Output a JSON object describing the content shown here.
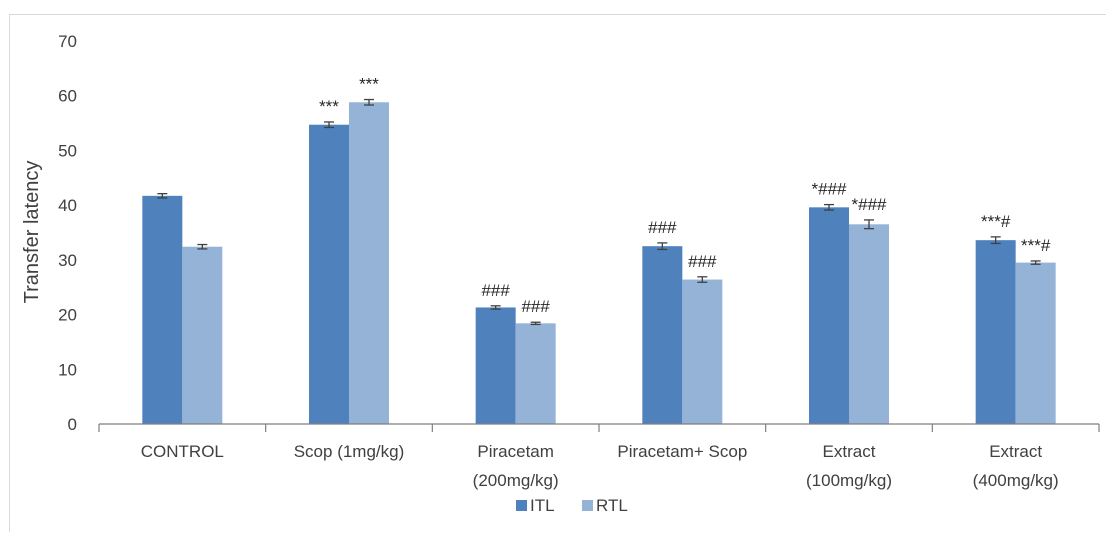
{
  "chart_data": {
    "type": "bar",
    "ylabel": "Transfer latency",
    "xlabel": "",
    "ylim": [
      0,
      70
    ],
    "yticks": [
      0,
      10,
      20,
      30,
      40,
      50,
      60,
      70
    ],
    "grid": false,
    "legend_position": "bottom",
    "categories": [
      [
        "CONTROL"
      ],
      [
        "Scop (1mg/kg)"
      ],
      [
        "Piracetam",
        "(200mg/kg)"
      ],
      [
        "Piracetam+ Scop"
      ],
      [
        "Extract",
        "(100mg/kg)"
      ],
      [
        "Extract",
        "(400mg/kg)"
      ]
    ],
    "series": [
      {
        "name": "ITL",
        "color": "#4f81bd",
        "values": [
          41.7,
          54.7,
          21.3,
          32.5,
          39.6,
          33.6
        ],
        "errors": [
          0.4,
          0.5,
          0.3,
          0.6,
          0.5,
          0.6
        ],
        "annotations": [
          "",
          "***",
          "###",
          "###",
          "*###",
          "***#"
        ]
      },
      {
        "name": "RTL",
        "color": "#95b3d7",
        "values": [
          32.4,
          58.8,
          18.4,
          26.4,
          36.5,
          29.5
        ],
        "errors": [
          0.4,
          0.5,
          0.2,
          0.5,
          0.8,
          0.3
        ],
        "annotations": [
          "",
          "***",
          "###",
          "###",
          "*###",
          "***#"
        ]
      }
    ]
  }
}
